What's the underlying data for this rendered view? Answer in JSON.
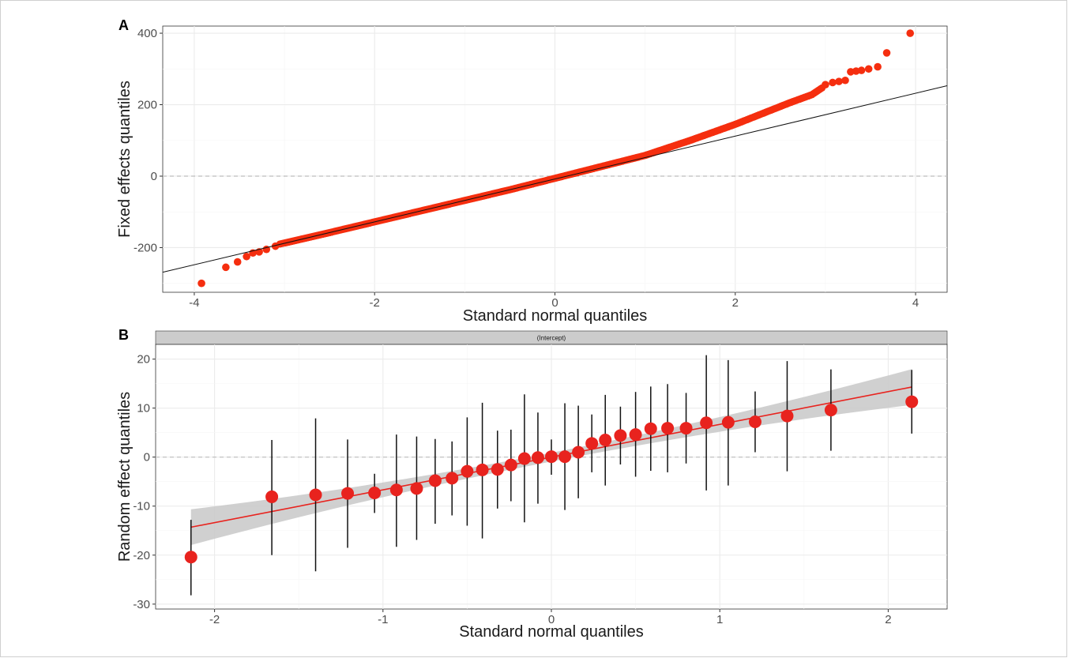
{
  "chart_data": [
    {
      "panel": "A",
      "type": "scatter",
      "xlabel": "Standard normal quantiles",
      "ylabel": "Fixed effects quantiles",
      "xlim": [
        -4.35,
        4.35
      ],
      "ylim": [
        -325,
        420
      ],
      "xticks": [
        -4,
        -2,
        0,
        2,
        4
      ],
      "yticks": [
        -200,
        0,
        200,
        400
      ],
      "grid": true,
      "reference_hline": 0,
      "reference_line": {
        "intercept": -8,
        "slope": 60
      },
      "point_color": "#F52E0F",
      "points": [
        {
          "x": -3.92,
          "y": -300
        },
        {
          "x": -3.65,
          "y": -255
        },
        {
          "x": -3.52,
          "y": -240
        },
        {
          "x": -3.42,
          "y": -225
        },
        {
          "x": -3.35,
          "y": -215
        },
        {
          "x": -3.28,
          "y": -212
        },
        {
          "x": -3.2,
          "y": -205
        },
        {
          "x": -3.1,
          "y": -196
        },
        {
          "x": 3.0,
          "y": 256
        },
        {
          "x": 3.08,
          "y": 262
        },
        {
          "x": 3.15,
          "y": 265
        },
        {
          "x": 3.22,
          "y": 268
        },
        {
          "x": 3.28,
          "y": 292
        },
        {
          "x": 3.34,
          "y": 294
        },
        {
          "x": 3.4,
          "y": 296
        },
        {
          "x": 3.48,
          "y": 300
        },
        {
          "x": 3.58,
          "y": 306
        },
        {
          "x": 3.68,
          "y": 345
        },
        {
          "x": 3.94,
          "y": 400
        }
      ],
      "bulk_curve": [
        {
          "x": -3.05,
          "y": -190
        },
        {
          "x": -2.5,
          "y": -158
        },
        {
          "x": -2.0,
          "y": -128
        },
        {
          "x": -1.5,
          "y": -98
        },
        {
          "x": -1.0,
          "y": -68
        },
        {
          "x": -0.5,
          "y": -38
        },
        {
          "x": 0.0,
          "y": -6
        },
        {
          "x": 0.5,
          "y": 26
        },
        {
          "x": 1.0,
          "y": 58
        },
        {
          "x": 1.5,
          "y": 100
        },
        {
          "x": 2.0,
          "y": 145
        },
        {
          "x": 2.3,
          "y": 175
        },
        {
          "x": 2.6,
          "y": 205
        },
        {
          "x": 2.85,
          "y": 228
        },
        {
          "x": 2.98,
          "y": 250
        }
      ]
    },
    {
      "panel": "B",
      "type": "scatter",
      "strip_label": "(Intercept)",
      "xlabel": "Standard normal quantiles",
      "ylabel": "Random effect quantiles",
      "xlim": [
        -2.35,
        2.35
      ],
      "ylim": [
        -31,
        23
      ],
      "xticks": [
        -2,
        -1,
        0,
        1,
        2
      ],
      "yticks": [
        -30,
        -20,
        -10,
        0,
        10,
        20
      ],
      "grid": true,
      "reference_hline": 0,
      "fit_line": {
        "x": [
          -2.14,
          2.14
        ],
        "y": [
          -14.3,
          14.3
        ]
      },
      "fit_line_color": "#E8231E",
      "band_color": "#C8C8C8",
      "point_color": "#E8231E",
      "points": [
        {
          "x": -2.14,
          "y": -20.4,
          "lo": -28.2,
          "hi": -12.8
        },
        {
          "x": -1.66,
          "y": -8.1,
          "lo": -20.0,
          "hi": 3.5
        },
        {
          "x": -1.4,
          "y": -7.7,
          "lo": -23.3,
          "hi": 7.9
        },
        {
          "x": -1.21,
          "y": -7.4,
          "lo": -18.5,
          "hi": 3.6
        },
        {
          "x": -1.05,
          "y": -7.3,
          "lo": -11.4,
          "hi": -3.4
        },
        {
          "x": -0.92,
          "y": -6.7,
          "lo": -18.3,
          "hi": 4.6
        },
        {
          "x": -0.8,
          "y": -6.4,
          "lo": -16.9,
          "hi": 4.2
        },
        {
          "x": -0.69,
          "y": -4.8,
          "lo": -13.6,
          "hi": 3.7
        },
        {
          "x": -0.59,
          "y": -4.3,
          "lo": -11.9,
          "hi": 3.2
        },
        {
          "x": -0.5,
          "y": -2.9,
          "lo": -14.0,
          "hi": 8.1
        },
        {
          "x": -0.41,
          "y": -2.6,
          "lo": -16.6,
          "hi": 11.1
        },
        {
          "x": -0.32,
          "y": -2.5,
          "lo": -10.5,
          "hi": 5.4
        },
        {
          "x": -0.24,
          "y": -1.6,
          "lo": -9.0,
          "hi": 5.6
        },
        {
          "x": -0.16,
          "y": -0.3,
          "lo": -13.3,
          "hi": 12.8
        },
        {
          "x": -0.08,
          "y": -0.1,
          "lo": -9.5,
          "hi": 9.1
        },
        {
          "x": 0.0,
          "y": 0.1,
          "lo": -3.6,
          "hi": 3.6
        },
        {
          "x": 0.08,
          "y": 0.1,
          "lo": -10.8,
          "hi": 11.0
        },
        {
          "x": 0.16,
          "y": 1.0,
          "lo": -8.4,
          "hi": 10.5
        },
        {
          "x": 0.24,
          "y": 2.8,
          "lo": -3.1,
          "hi": 8.7
        },
        {
          "x": 0.32,
          "y": 3.5,
          "lo": -5.8,
          "hi": 12.7
        },
        {
          "x": 0.41,
          "y": 4.4,
          "lo": -1.5,
          "hi": 10.3
        },
        {
          "x": 0.5,
          "y": 4.6,
          "lo": -4.0,
          "hi": 13.3
        },
        {
          "x": 0.59,
          "y": 5.8,
          "lo": -2.8,
          "hi": 14.4
        },
        {
          "x": 0.69,
          "y": 5.9,
          "lo": -3.1,
          "hi": 14.9
        },
        {
          "x": 0.8,
          "y": 5.9,
          "lo": -1.3,
          "hi": 13.1
        },
        {
          "x": 0.92,
          "y": 7.0,
          "lo": -6.8,
          "hi": 20.8
        },
        {
          "x": 1.05,
          "y": 7.1,
          "lo": -5.8,
          "hi": 19.8
        },
        {
          "x": 1.21,
          "y": 7.2,
          "lo": 1.0,
          "hi": 13.4
        },
        {
          "x": 1.4,
          "y": 8.4,
          "lo": -2.9,
          "hi": 19.6
        },
        {
          "x": 1.66,
          "y": 9.6,
          "lo": 1.3,
          "hi": 17.9
        },
        {
          "x": 2.14,
          "y": 11.3,
          "lo": 4.8,
          "hi": 17.8
        }
      ]
    }
  ],
  "labels": {
    "panel_a": "A",
    "panel_b": "B"
  }
}
